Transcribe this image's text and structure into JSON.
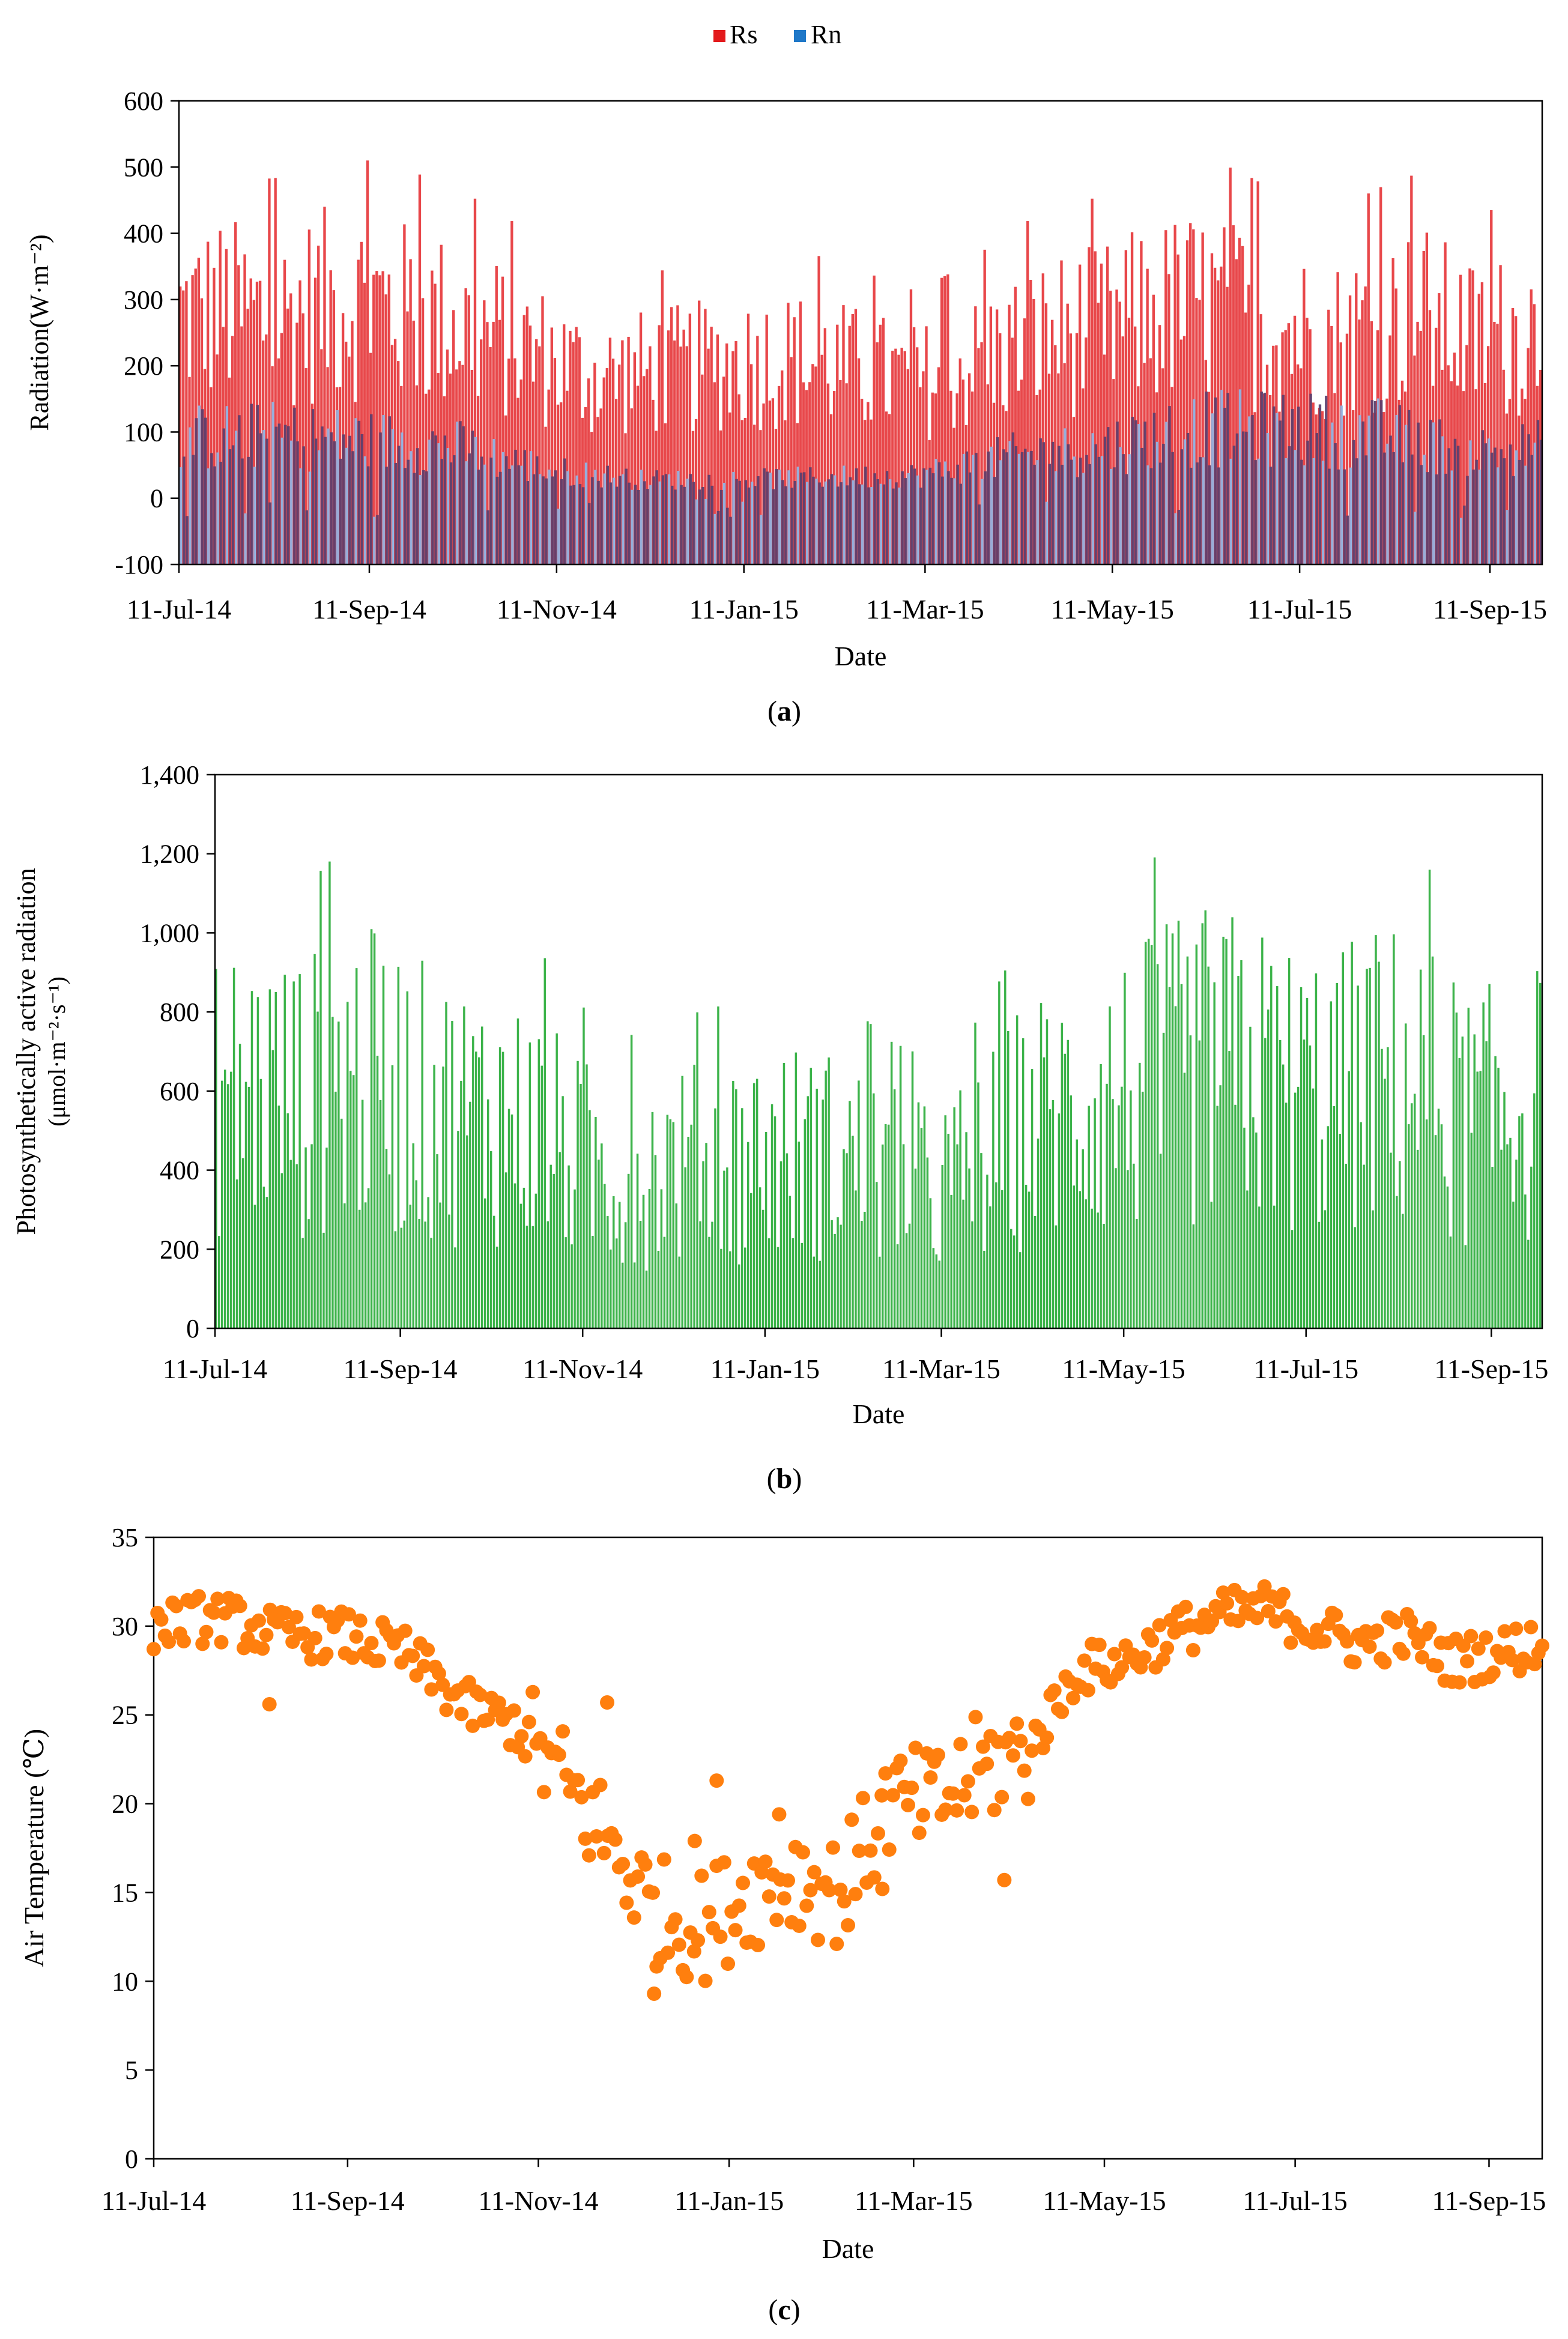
{
  "panels": [
    {
      "id": "a",
      "letter": "a",
      "chart_data": {
        "type": "bar",
        "title": "",
        "xlabel": "Date",
        "ylabel": "Radiation(W·m⁻²)",
        "ylim": [
          -100,
          600
        ],
        "yticks": [
          -100,
          0,
          100,
          200,
          300,
          400,
          500,
          600
        ],
        "ytick_labels": [
          "-100",
          "0",
          "100",
          "200",
          "300",
          "400",
          "500",
          "600"
        ],
        "xtick_labels": [
          "11-Jul-14",
          "11-Sep-14",
          "11-Nov-14",
          "11-Jan-15",
          "11-Mar-15",
          "11-May-15",
          "11-Jul-15",
          "11-Sep-15"
        ],
        "xtick_days": [
          0,
          62,
          123,
          184,
          243,
          304,
          365,
          427
        ],
        "x_span_days": 444,
        "legend": [
          {
            "name": "Rs",
            "color": "#e31a1c"
          },
          {
            "name": "Rn",
            "color": "#1f78c8"
          }
        ],
        "legend_position": "top-center",
        "series": [
          {
            "name": "Rs",
            "color": "#e8474a",
            "daily_values_resolution": "daily",
            "envelope": {
              "x_days": [
                0,
                15,
                30,
                45,
                60,
                75,
                90,
                105,
                120,
                135,
                150,
                165,
                180,
                195,
                210,
                225,
                240,
                255,
                270,
                285,
                300,
                315,
                330,
                345,
                360,
                375,
                390,
                405,
                420,
                435,
                444
              ],
              "y": [
                380,
                390,
                370,
                400,
                410,
                380,
                360,
                330,
                290,
                250,
                260,
                270,
                280,
                290,
                280,
                260,
                240,
                270,
                310,
                340,
                350,
                380,
                400,
                380,
                350,
                330,
                360,
                380,
                330,
                340,
                350
              ]
            },
            "peak": 510
          },
          {
            "name": "Rn",
            "color": "#5b8fd0",
            "daily_values_resolution": "daily",
            "envelope": {
              "x_days": [
                0,
                30,
                60,
                90,
                120,
                150,
                180,
                210,
                240,
                270,
                300,
                330,
                360,
                390,
                420,
                444
              ],
              "y": [
                130,
                135,
                125,
                110,
                60,
                40,
                40,
                45,
                50,
                90,
                110,
                150,
                150,
                140,
                100,
                110
              ]
            },
            "min": -30
          }
        ]
      }
    },
    {
      "id": "b",
      "letter": "b",
      "chart_data": {
        "type": "bar",
        "title": "",
        "xlabel": "Date",
        "ylabel": "Photosynthetically active radiation",
        "ylabel2": "(μmol·m⁻²·s⁻¹)",
        "ylim": [
          0,
          1400
        ],
        "yticks": [
          0,
          200,
          400,
          600,
          800,
          1000,
          1200,
          1400
        ],
        "ytick_labels": [
          "0",
          "200",
          "400",
          "600",
          "800",
          "1,000",
          "1,200",
          "1,400"
        ],
        "xtick_labels": [
          "11-Jul-14",
          "11-Sep-14",
          "11-Nov-14",
          "11-Jan-15",
          "11-Mar-15",
          "11-May-15",
          "11-Jul-15",
          "11-Sep-15"
        ],
        "xtick_days": [
          0,
          62,
          123,
          184,
          243,
          304,
          365,
          427
        ],
        "x_span_days": 444,
        "series": [
          {
            "name": "PAR",
            "color": "#3cb34a",
            "envelope": {
              "x_days": [
                0,
                15,
                30,
                45,
                60,
                75,
                90,
                105,
                120,
                135,
                150,
                165,
                180,
                195,
                210,
                225,
                240,
                255,
                270,
                285,
                300,
                315,
                330,
                345,
                360,
                375,
                390,
                405,
                420,
                435,
                444
              ],
              "y": [
                880,
                900,
                860,
                950,
                900,
                820,
                800,
                760,
                640,
                560,
                600,
                620,
                650,
                660,
                640,
                560,
                520,
                600,
                760,
                820,
                860,
                920,
                980,
                960,
                900,
                880,
                950,
                900,
                780,
                820,
                850
              ]
            },
            "peak": 1195
          }
        ]
      }
    },
    {
      "id": "c",
      "letter": "c",
      "chart_data": {
        "type": "scatter",
        "title": "",
        "xlabel": "Date",
        "ylabel": "Air Temperature (℃)",
        "ylim": [
          0,
          35
        ],
        "yticks": [
          0,
          5,
          10,
          15,
          20,
          25,
          30,
          35
        ],
        "ytick_labels": [
          "0",
          "5",
          "10",
          "15",
          "20",
          "25",
          "30",
          "35"
        ],
        "xtick_labels": [
          "11-Jul-14",
          "11-Sep-14",
          "11-Nov-14",
          "11-Jan-15",
          "11-Mar-15",
          "11-May-15",
          "11-Jul-15",
          "11-Sep-15"
        ],
        "xtick_days": [
          0,
          62,
          123,
          184,
          243,
          304,
          365,
          427
        ],
        "x_span_days": 444,
        "series": [
          {
            "name": "Air Temperature",
            "color": "#ff7f0e",
            "trend": {
              "x_days": [
                0,
                20,
                40,
                60,
                80,
                100,
                115,
                130,
                145,
                160,
                175,
                190,
                205,
                220,
                235,
                250,
                265,
                280,
                295,
                310,
                325,
                340,
                355,
                370,
                385,
                400,
                415,
                430,
                444
              ],
              "y": [
                30,
                30.5,
                29.5,
                29.5,
                28.5,
                25.5,
                24.5,
                21.5,
                18,
                14,
                13,
                15,
                16,
                15,
                20,
                20,
                22,
                23,
                27.5,
                28,
                29.5,
                30.5,
                31,
                30,
                29,
                29.5,
                28,
                28.5,
                29
              ]
            },
            "outliers": [
              {
                "day": 160,
                "value": 9.3
              },
              {
                "day": 180,
                "value": 21.3
              },
              {
                "day": 173,
                "value": 17.9
              },
              {
                "day": 272,
                "value": 15.7
              },
              {
                "day": 233,
                "value": 15.2
              },
              {
                "day": 37,
                "value": 25.6
              },
              {
                "day": 145,
                "value": 25.7
              },
              {
                "day": 200,
                "value": 19.4
              }
            ]
          }
        ]
      }
    }
  ]
}
